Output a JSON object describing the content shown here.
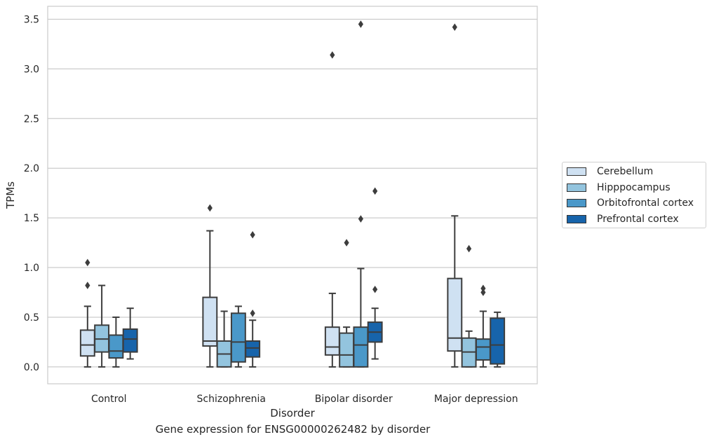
{
  "colors": {
    "Cerebellum": "#cfe1f2",
    "Hipppocampus": "#93c4de",
    "Orbitofrontal cortex": "#4a98c9",
    "Prefrontal cortex": "#1764ab",
    "stroke": "#3d3d3d",
    "grid": "#cccccc"
  },
  "caption": "Gene expression for ENSG00000262482 by disorder",
  "chart_data": {
    "type": "box",
    "xlabel": "Disorder",
    "ylabel": "TPMs",
    "ylim": [
      -0.17,
      3.63
    ],
    "yticks": [
      "0.0",
      "0.5",
      "1.0",
      "1.5",
      "2.0",
      "2.5",
      "3.0",
      "3.5"
    ],
    "grid": "horizontal",
    "legend_position": "right",
    "categories": [
      "Control",
      "Schizophrenia",
      "Bipolar disorder",
      "Major depression"
    ],
    "series": [
      {
        "name": "Cerebellum",
        "boxes": [
          {
            "whislo": 0.0,
            "q1": 0.11,
            "med": 0.22,
            "q3": 0.37,
            "whishi": 0.61,
            "fliers": [
              1.05,
              0.82
            ]
          },
          {
            "whislo": 0.0,
            "q1": 0.21,
            "med": 0.26,
            "q3": 0.7,
            "whishi": 1.37,
            "fliers": [
              1.6
            ]
          },
          {
            "whislo": 0.0,
            "q1": 0.12,
            "med": 0.2,
            "q3": 0.4,
            "whishi": 0.74,
            "fliers": [
              3.14
            ]
          },
          {
            "whislo": 0.0,
            "q1": 0.16,
            "med": 0.29,
            "q3": 0.89,
            "whishi": 1.52,
            "fliers": [
              3.42
            ]
          }
        ]
      },
      {
        "name": "Hipppocampus",
        "boxes": [
          {
            "whislo": 0.0,
            "q1": 0.15,
            "med": 0.28,
            "q3": 0.42,
            "whishi": 0.82,
            "fliers": []
          },
          {
            "whislo": 0.0,
            "q1": 0.0,
            "med": 0.13,
            "q3": 0.26,
            "whishi": 0.56,
            "fliers": []
          },
          {
            "whislo": 0.0,
            "q1": 0.0,
            "med": 0.12,
            "q3": 0.34,
            "whishi": 0.4,
            "fliers": [
              1.25
            ]
          },
          {
            "whislo": 0.0,
            "q1": 0.0,
            "med": 0.15,
            "q3": 0.29,
            "whishi": 0.36,
            "fliers": [
              1.19
            ]
          }
        ]
      },
      {
        "name": "Orbitofrontal cortex",
        "boxes": [
          {
            "whislo": 0.0,
            "q1": 0.09,
            "med": 0.16,
            "q3": 0.32,
            "whishi": 0.5,
            "fliers": []
          },
          {
            "whislo": 0.0,
            "q1": 0.05,
            "med": 0.25,
            "q3": 0.54,
            "whishi": 0.61,
            "fliers": []
          },
          {
            "whislo": 0.0,
            "q1": 0.0,
            "med": 0.22,
            "q3": 0.4,
            "whishi": 0.99,
            "fliers": [
              3.45,
              1.49
            ]
          },
          {
            "whislo": 0.0,
            "q1": 0.07,
            "med": 0.2,
            "q3": 0.28,
            "whishi": 0.56,
            "fliers": [
              0.79,
              0.75
            ]
          }
        ]
      },
      {
        "name": "Prefrontal cortex",
        "boxes": [
          {
            "whislo": 0.08,
            "q1": 0.15,
            "med": 0.28,
            "q3": 0.38,
            "whishi": 0.59,
            "fliers": []
          },
          {
            "whislo": 0.0,
            "q1": 0.1,
            "med": 0.19,
            "q3": 0.26,
            "whishi": 0.47,
            "fliers": [
              1.33,
              0.54
            ]
          },
          {
            "whislo": 0.08,
            "q1": 0.25,
            "med": 0.35,
            "q3": 0.45,
            "whishi": 0.59,
            "fliers": [
              1.77,
              0.78
            ]
          },
          {
            "whislo": 0.0,
            "q1": 0.03,
            "med": 0.22,
            "q3": 0.49,
            "whishi": 0.55,
            "fliers": []
          }
        ]
      }
    ]
  }
}
